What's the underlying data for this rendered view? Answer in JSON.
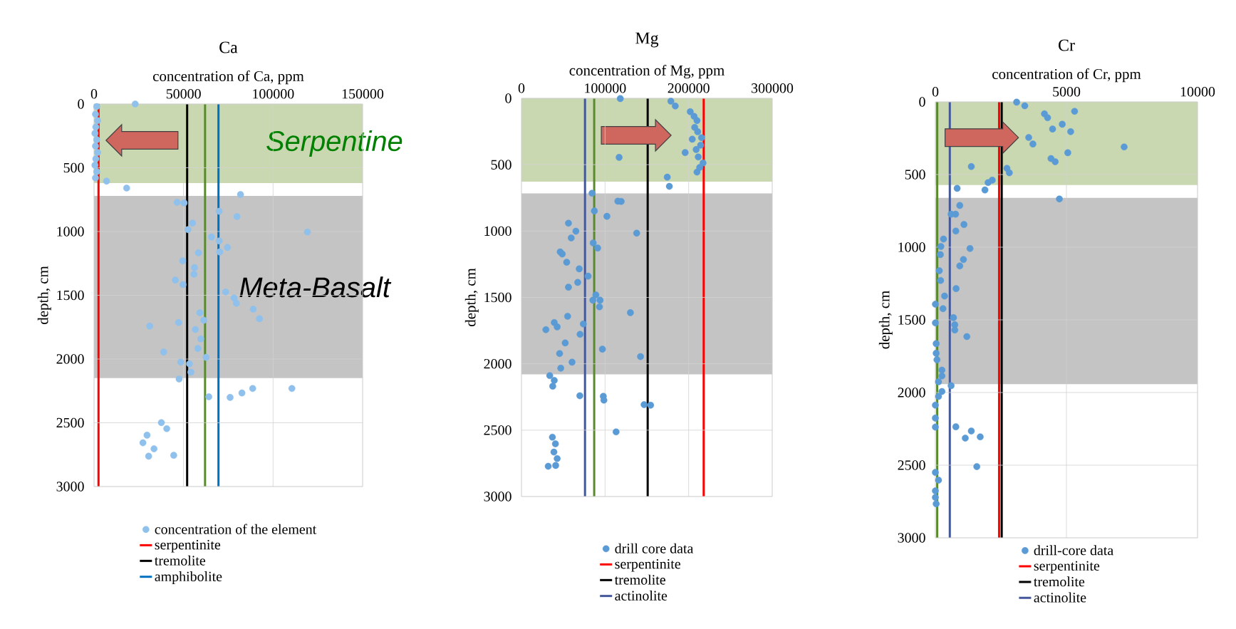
{
  "chart_data": [
    {
      "type": "scatter",
      "title": "Ca",
      "xlabel": "concentration of Ca, ppm",
      "ylabel": "depth, cm",
      "series": [
        {
          "name": "concentration of the element",
          "color": "#8fc1ec",
          "x": [
            1500,
            800,
            2000,
            1000,
            500,
            1500,
            800,
            2000,
            1000,
            500,
            1500,
            800,
            23000,
            7000,
            18200,
            81800,
            46400,
            50300,
            69900,
            79800,
            55000,
            52500,
            119200,
            65600,
            69900,
            74500,
            70200,
            58300,
            49500,
            56100,
            55800,
            45400,
            49700,
            73500,
            78200,
            79500,
            88900,
            92400,
            59100,
            61300,
            31100,
            47200,
            56600,
            59600,
            58000,
            38900,
            62600,
            48400,
            53300,
            54100,
            47500,
            88600,
            110500,
            82600,
            64100,
            76000,
            37600,
            40600,
            29600,
            27300,
            33500,
            30500,
            44500
          ],
          "values": [
            20,
            80,
            130,
            180,
            230,
            280,
            330,
            380,
            430,
            480,
            530,
            580,
            0,
            605,
            659,
            710,
            771,
            776,
            841,
            883,
            934,
            985,
            1004,
            1043,
            1074,
            1125,
            1160,
            1167,
            1230,
            1283,
            1335,
            1381,
            1416,
            1474,
            1521,
            1563,
            1609,
            1684,
            1637,
            1696,
            1742,
            1714,
            1768,
            1842,
            1917,
            1945,
            1987,
            2024,
            2038,
            2103,
            2157,
            2231,
            2231,
            2266,
            2296,
            2301,
            2499,
            2546,
            2597,
            2657,
            2704,
            2762,
            2755
          ]
        }
      ],
      "xlim": [
        0,
        150000
      ],
      "xticks": [
        0,
        50000,
        100000,
        150000
      ],
      "ylim": [
        3000,
        0
      ],
      "yticks": [
        0,
        500,
        1000,
        1500,
        2000,
        2500,
        3000
      ],
      "grid": true,
      "legend": "bottom",
      "marker": "circle",
      "ref_lines": [
        {
          "axis": "x",
          "value": 2500,
          "label": "serpentinite",
          "color": "#ff0000"
        },
        {
          "axis": "x",
          "value": 52000,
          "label": "tremolite",
          "color": "#000000"
        },
        {
          "axis": "x",
          "value": 62000,
          "color": "#5a8a2e"
        },
        {
          "axis": "x",
          "value": 69500,
          "label": "amphibolite",
          "color": "#0070c0"
        }
      ],
      "bands": [
        {
          "axis": "y",
          "from": 0,
          "to": 620,
          "label": "Serpentine",
          "color": "#cad8b2"
        },
        {
          "axis": "y",
          "from": 720,
          "to": 2150,
          "label": "Meta-Basalt",
          "color": "#c4c4c4"
        }
      ]
    },
    {
      "type": "scatter",
      "title": "Mg",
      "xlabel": "concentration of Mg, ppm",
      "ylabel": "depth, cm",
      "series": [
        {
          "name": "drill core data",
          "color": "#5b9bd5",
          "x": [
            118200,
            178700,
            184000,
            201900,
            206500,
            210000,
            207200,
            210800,
            215400,
            204300,
            214300,
            209000,
            195800,
            211500,
            116800,
            217200,
            213200,
            210000,
            174400,
            176900,
            84400,
            115300,
            119300,
            87200,
            102200,
            56200,
            65100,
            137800,
            59500,
            85800,
            91100,
            46300,
            48800,
            54100,
            69100,
            79700,
            67300,
            56200,
            89000,
            85400,
            94000,
            93300,
            130300,
            55200,
            74000,
            39200,
            42700,
            29200,
            70100,
            52300,
            96800,
            45600,
            142400,
            60500,
            47000,
            33800,
            39200,
            37400,
            69800,
            97900,
            98600,
            146700,
            154500,
            113200,
            37000,
            40600,
            38800,
            42700,
            32000,
            40900
          ],
          "values": [
            2,
            22,
            58,
            101,
            136,
            168,
            219,
            252,
            297,
            308,
            353,
            386,
            409,
            442,
            445,
            487,
            521,
            556,
            594,
            663,
            715,
            775,
            777,
            849,
            889,
            941,
            1001,
            1016,
            1052,
            1090,
            1128,
            1157,
            1173,
            1235,
            1285,
            1340,
            1387,
            1423,
            1481,
            1521,
            1521,
            1571,
            1615,
            1642,
            1700,
            1689,
            1722,
            1743,
            1778,
            1843,
            1890,
            1923,
            1946,
            1988,
            2033,
            2089,
            2125,
            2169,
            2241,
            2245,
            2274,
            2308,
            2312,
            2513,
            2553,
            2603,
            2665,
            2714,
            2772,
            2766
          ]
        }
      ],
      "xlim": [
        0,
        300000
      ],
      "xticks": [
        0,
        100000,
        200000,
        300000
      ],
      "ylim": [
        3000,
        0
      ],
      "yticks": [
        0,
        500,
        1000,
        1500,
        2000,
        2500,
        3000
      ],
      "grid": true,
      "legend": "bottom",
      "marker": "circle",
      "ref_lines": [
        {
          "axis": "x",
          "value": 218000,
          "label": "serpentinite",
          "color": "#ff0000"
        },
        {
          "axis": "x",
          "value": 151000,
          "label": "tremolite",
          "color": "#000000"
        },
        {
          "axis": "x",
          "value": 87000,
          "color": "#5a8a2e"
        },
        {
          "axis": "x",
          "value": 76000,
          "label": "actinolite",
          "color": "#44579b"
        }
      ],
      "bands": [
        {
          "axis": "y",
          "from": 0,
          "to": 628,
          "color": "#cad8b2"
        },
        {
          "axis": "y",
          "from": 717,
          "to": 2080,
          "color": "#c4c4c4"
        }
      ]
    },
    {
      "type": "scatter",
      "title": "Cr",
      "xlabel": "concentration of Cr, ppm",
      "ylabel": "depth, cm",
      "series": [
        {
          "name": "drill-core data",
          "color": "#5b9bd5",
          "x": [
            3100,
            3410,
            4160,
            5310,
            4280,
            4840,
            4470,
            5160,
            3560,
            3720,
            7200,
            5050,
            4410,
            4570,
            1370,
            2730,
            2820,
            2170,
            2010,
            830,
            1890,
            4730,
            930,
            600,
            770,
            1090,
            780,
            310,
            210,
            1320,
            190,
            1070,
            930,
            150,
            200,
            790,
            350,
            0,
            290,
            690,
            0,
            740,
            740,
            1200,
            30,
            30,
            60,
            250,
            250,
            120,
            600,
            250,
            120,
            0,
            0,
            0,
            780,
            1370,
            1140,
            1710,
            1580,
            0,
            120,
            0,
            0,
            30
          ],
          "values": [
            2,
            27,
            82,
            65,
            109,
            154,
            187,
            205,
            245,
            290,
            310,
            350,
            390,
            412,
            445,
            457,
            488,
            539,
            555,
            595,
            606,
            668,
            713,
            773,
            773,
            844,
            889,
            944,
            995,
            1009,
            1051,
            1085,
            1129,
            1162,
            1229,
            1285,
            1336,
            1392,
            1423,
            1485,
            1521,
            1534,
            1570,
            1615,
            1664,
            1730,
            1775,
            1846,
            1886,
            1926,
            1953,
            1993,
            2027,
            2087,
            2176,
            2238,
            2236,
            2265,
            2314,
            2305,
            2510,
            2550,
            2603,
            2677,
            2722,
            2766
          ]
        }
      ],
      "xlim": [
        0,
        10000
      ],
      "xticks": [
        0,
        5000,
        10000
      ],
      "ylim": [
        3000,
        0
      ],
      "yticks": [
        0,
        500,
        1000,
        1500,
        2000,
        2500,
        3000
      ],
      "grid": true,
      "legend": "bottom",
      "marker": "circle",
      "ref_lines": [
        {
          "axis": "x",
          "value": 2430,
          "label": "serpentinite",
          "color": "#ff0000"
        },
        {
          "axis": "x",
          "value": 2530,
          "label": "tremolite",
          "color": "#000000"
        },
        {
          "axis": "x",
          "value": 70,
          "color": "#5a8a2e"
        },
        {
          "axis": "x",
          "value": 550,
          "label": "actinolite",
          "color": "#44579b"
        }
      ],
      "bands": [
        {
          "axis": "y",
          "from": 0,
          "to": 572,
          "color": "#cad8b2"
        },
        {
          "axis": "y",
          "from": 661,
          "to": 1942,
          "color": "#c4c4c4"
        }
      ]
    }
  ]
}
